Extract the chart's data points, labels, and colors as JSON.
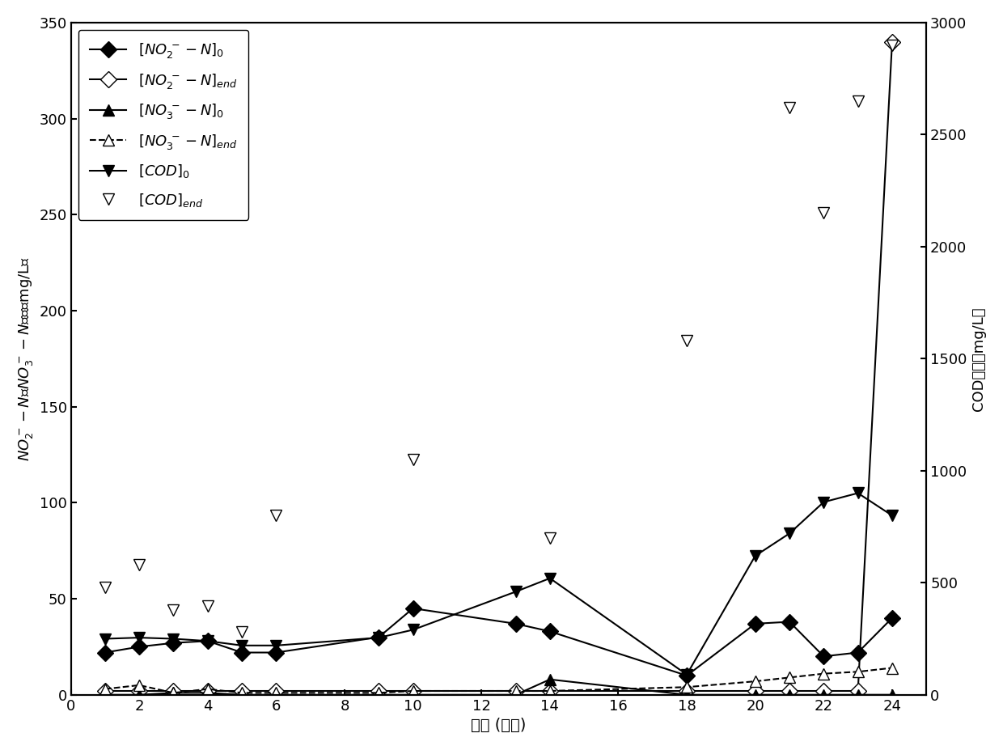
{
  "x_main": [
    1,
    2,
    3,
    4,
    5,
    6,
    9,
    10,
    13,
    14,
    18,
    20,
    21,
    22,
    23,
    24
  ],
  "NO2_N_0": [
    22,
    25,
    27,
    28,
    22,
    22,
    30,
    45,
    37,
    33,
    10,
    37,
    38,
    20,
    22,
    40
  ],
  "NO2_N_end": [
    2,
    2,
    2,
    2,
    2,
    2,
    2,
    2,
    2,
    2,
    2,
    2,
    2,
    2,
    2,
    340
  ],
  "NO3_N_0": [
    0,
    0,
    1,
    1,
    0,
    0,
    0,
    0,
    0,
    8,
    0,
    0,
    0,
    0,
    0,
    0
  ],
  "NO3_N_end": [
    3,
    5,
    1,
    3,
    1,
    1,
    1,
    2,
    2,
    2,
    4,
    7,
    9,
    11,
    12,
    14
  ],
  "COD_0": [
    250,
    255,
    250,
    240,
    220,
    220,
    255,
    290,
    460,
    520,
    90,
    620,
    720,
    860,
    900,
    800
  ],
  "COD_end_x": [
    1,
    2,
    3,
    4,
    5,
    6,
    10,
    14,
    18,
    21,
    22,
    23,
    24
  ],
  "COD_end": [
    480,
    580,
    380,
    395,
    280,
    800,
    1050,
    700,
    1580,
    2620,
    2150,
    2650,
    2900
  ],
  "xlim": [
    0,
    25
  ],
  "ylim_left": [
    0,
    350
  ],
  "ylim_right": [
    0,
    3000
  ],
  "xticks": [
    0,
    2,
    4,
    6,
    8,
    10,
    12,
    14,
    16,
    18,
    20,
    22,
    24
  ],
  "yticks_left": [
    0,
    50,
    100,
    150,
    200,
    250,
    300,
    350
  ],
  "yticks_right": [
    0,
    500,
    1000,
    1500,
    2000,
    2500,
    3000
  ],
  "xlabel": "时间 (周期)",
  "ylabel_left": "NO₂⁻-N和NO₃⁻-N浓度（mg/L）",
  "ylabel_right": "COD浓度（mg/L）",
  "background_color": "#ffffff",
  "line_color": "#000000"
}
